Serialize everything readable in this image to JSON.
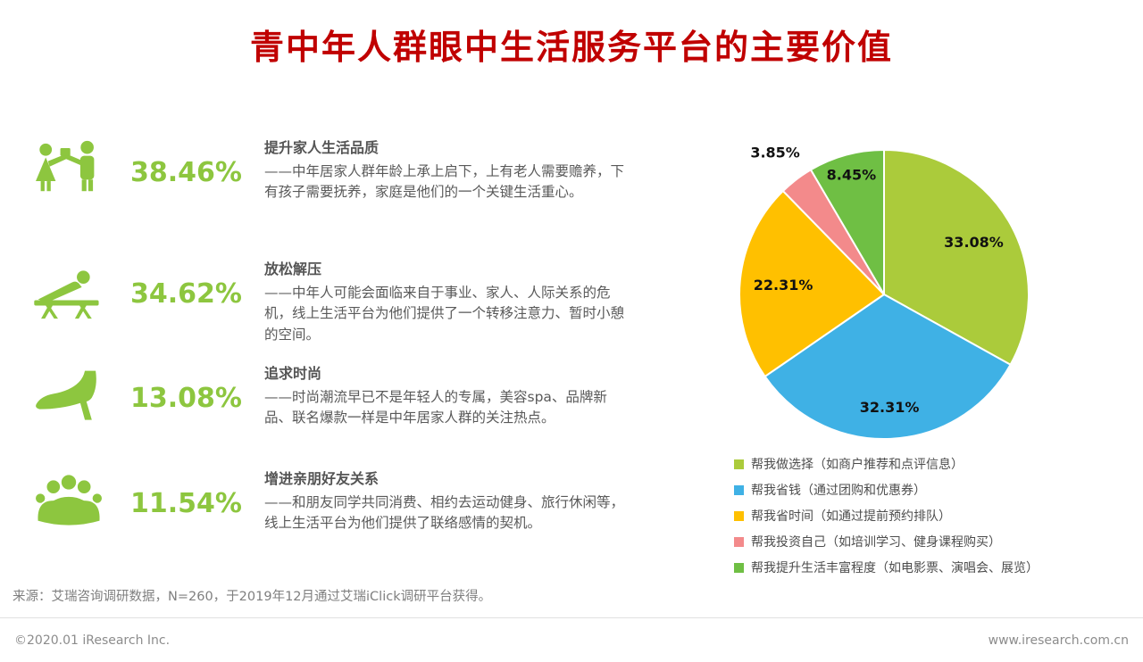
{
  "title": "青中年人群眼中生活服务平台的主要价值",
  "colors": {
    "title_red": "#C00000",
    "accent_green": "#8DC63F"
  },
  "items": [
    {
      "icon": "family-gift-icon",
      "percent": "38.46%",
      "heading": "提升家人生活品质",
      "desc": "——中年居家人群年龄上承上启下，上有老人需要赡养，下有孩子需要抚养，家庭是他们的一个关键生活重心。"
    },
    {
      "icon": "relax-lounge-icon",
      "percent": "34.62%",
      "heading": "放松解压",
      "desc": "——中年人可能会面临来自于事业、家人、人际关系的危机，线上生活平台为他们提供了一个转移注意力、暂时小憩的空间。"
    },
    {
      "icon": "high-heel-icon",
      "percent": "13.08%",
      "heading": "追求时尚",
      "desc": "——时尚潮流早已不是年轻人的专属，美容spa、品牌新品、联名爆款一样是中年居家人群的关注热点。"
    },
    {
      "icon": "friends-group-icon",
      "percent": "11.54%",
      "heading": "增进亲朋好友关系",
      "desc": "——和朋友同学共同消费、相约去运动健身、旅行休闲等，线上生活平台为他们提供了联络感情的契机。"
    }
  ],
  "chart_data": {
    "type": "pie",
    "categories": [
      "帮我做选择（如商户推荐和点评信息）",
      "帮我省钱（通过团购和优惠券）",
      "帮我省时间（如通过提前预约排队）",
      "帮我投资自己（如培训学习、健身课程购买）",
      "帮我提升生活丰富程度（如电影票、演唱会、展览）"
    ],
    "values": [
      33.08,
      32.31,
      22.31,
      3.85,
      8.45
    ],
    "slice_labels": [
      "33.08%",
      "32.31%",
      "22.31%",
      "3.85%",
      "8.45%"
    ],
    "colors": [
      "#ABCB3B",
      "#3FB1E5",
      "#FFC000",
      "#F38A8B",
      "#6FBF44"
    ],
    "start_angle_deg": 0,
    "direction": "clockwise",
    "legend_position": "below-chart-left",
    "label_radius": [
      0.72,
      0.78,
      0.7,
      1.24,
      0.86
    ]
  },
  "source": "来源：艾瑞咨询调研数据，N=260，于2019年12月通过艾瑞iClick调研平台获得。",
  "footer": {
    "left": "©2020.01 iResearch Inc.",
    "right": "www.iresearch.com.cn"
  }
}
